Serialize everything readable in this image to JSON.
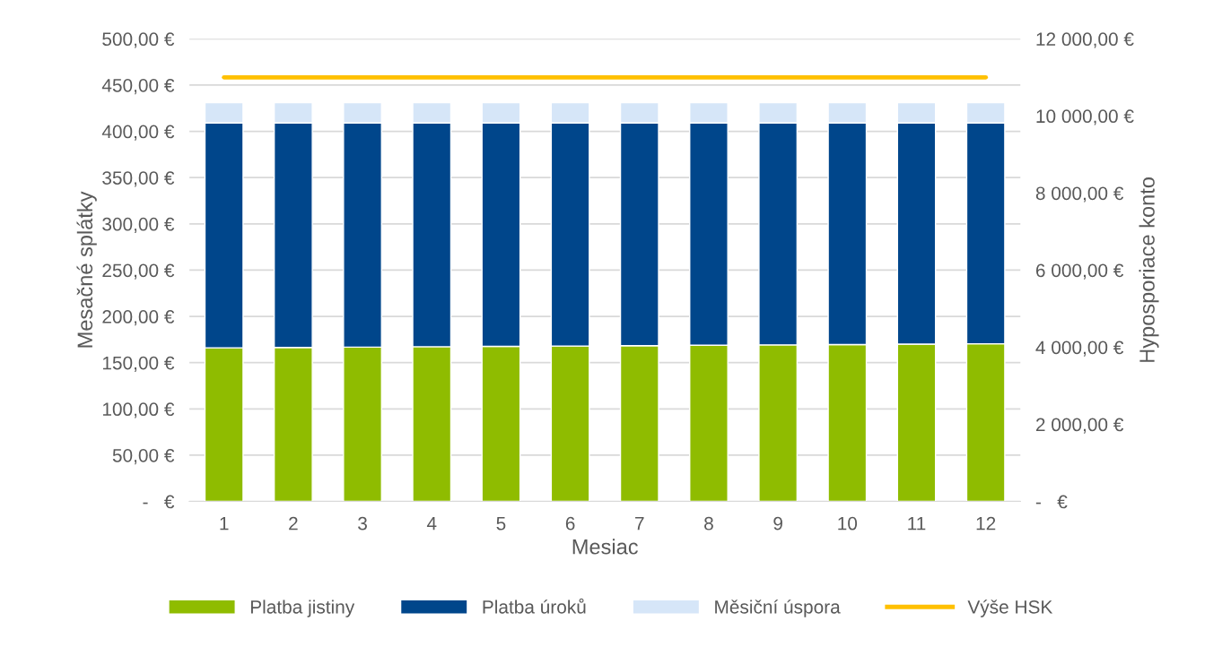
{
  "chart_data": {
    "type": "bar",
    "stacked": true,
    "xlabel": "Mesiac",
    "ylabel": "Mesačné splátky",
    "y2label": "Hyposporiace konto",
    "categories": [
      "1",
      "2",
      "3",
      "4",
      "5",
      "6",
      "7",
      "8",
      "9",
      "10",
      "11",
      "12"
    ],
    "series": [
      {
        "name": "Platba jistiny",
        "color": "#8fbc00",
        "values": [
          166,
          166.4,
          166.8,
          167.2,
          167.6,
          168,
          168.4,
          168.8,
          169.2,
          169.6,
          170,
          170.4
        ]
      },
      {
        "name": "Platba úroků",
        "color": "#00468b",
        "values": [
          243,
          242.6,
          242.2,
          241.8,
          241.4,
          241,
          240.6,
          240.2,
          239.8,
          239.4,
          239,
          238.6
        ]
      },
      {
        "name": "Měsiční úspora",
        "color": "#d6e6f8",
        "values": [
          22,
          22,
          22,
          22,
          22,
          22,
          22,
          22,
          22,
          22,
          22,
          22
        ]
      },
      {
        "name": "Výše HSK",
        "color": "#ffc000",
        "type": "line",
        "axis": "y2",
        "values": [
          11000,
          11000,
          11000,
          11000,
          11000,
          11000,
          11000,
          11000,
          11000,
          11000,
          11000,
          11000
        ]
      }
    ],
    "ylim": [
      0,
      500
    ],
    "yticks": [
      {
        "value": 0,
        "label": "-   €"
      },
      {
        "value": 50,
        "label": "50,00 €"
      },
      {
        "value": 100,
        "label": "100,00 €"
      },
      {
        "value": 150,
        "label": "150,00 €"
      },
      {
        "value": 200,
        "label": "200,00 €"
      },
      {
        "value": 250,
        "label": "250,00 €"
      },
      {
        "value": 300,
        "label": "300,00 €"
      },
      {
        "value": 350,
        "label": "350,00 €"
      },
      {
        "value": 400,
        "label": "400,00 €"
      },
      {
        "value": 450,
        "label": "450,00 €"
      },
      {
        "value": 500,
        "label": "500,00 €"
      }
    ],
    "y2lim": [
      0,
      12000
    ],
    "y2ticks": [
      {
        "value": 0,
        "label": "-   €"
      },
      {
        "value": 2000,
        "label": "2 000,00 €"
      },
      {
        "value": 4000,
        "label": "4 000,00 €"
      },
      {
        "value": 6000,
        "label": "6 000,00 €"
      },
      {
        "value": 8000,
        "label": "8 000,00 €"
      },
      {
        "value": 10000,
        "label": "10 000,00 €"
      },
      {
        "value": 12000,
        "label": "12 000,00 €"
      }
    ],
    "grid": "y",
    "legend": "bottom"
  }
}
